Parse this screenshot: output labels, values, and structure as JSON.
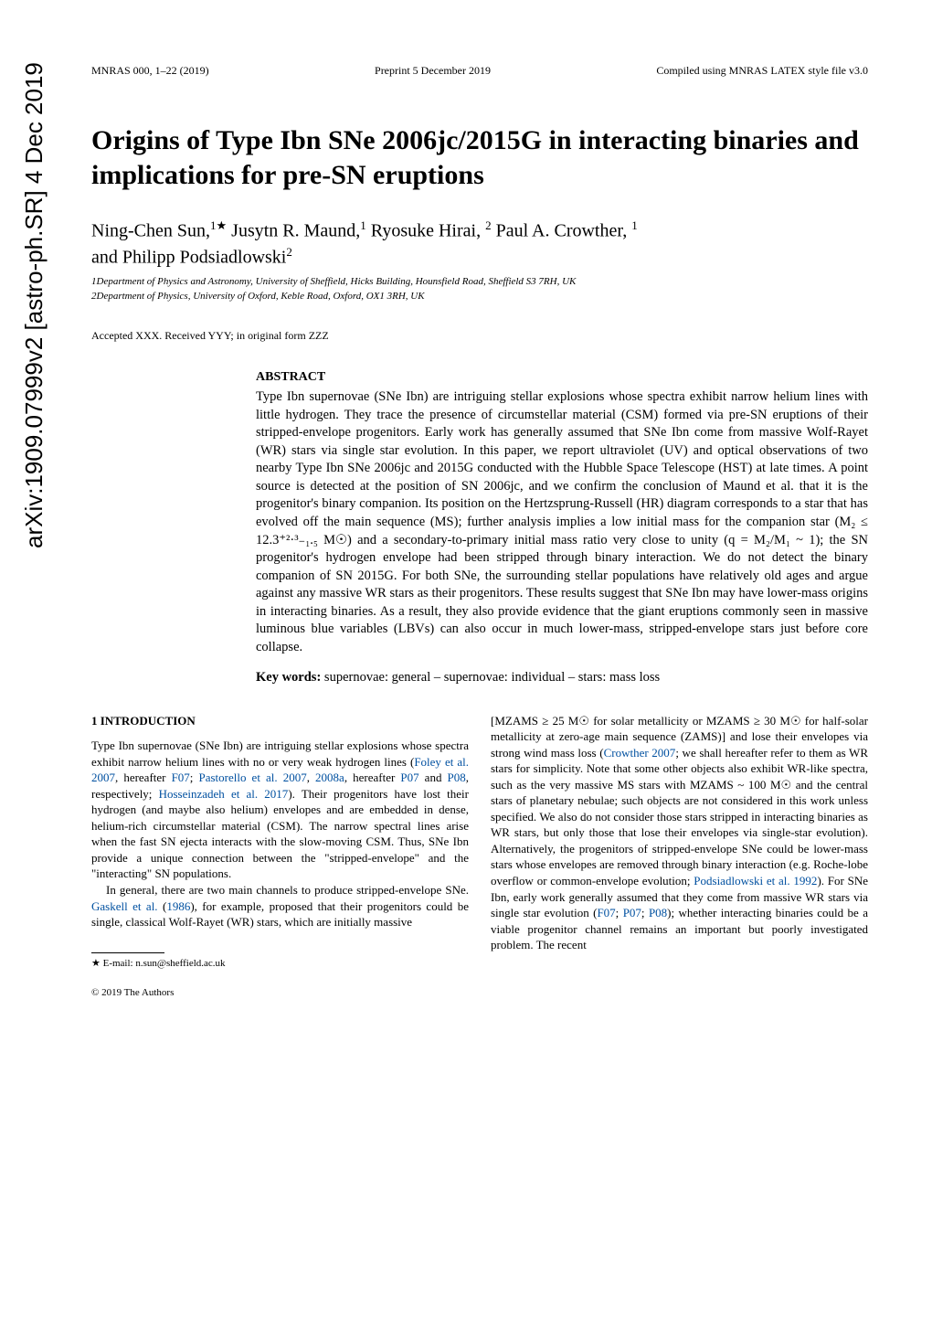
{
  "arxiv": "arXiv:1909.07999v2  [astro-ph.SR]  4 Dec 2019",
  "header": {
    "left": "MNRAS 000, 1–22 (2019)",
    "center": "Preprint 5 December 2019",
    "right": "Compiled using MNRAS LATEX style file v3.0"
  },
  "title": "Origins of Type Ibn SNe 2006jc/2015G in interacting binaries and implications for pre-SN eruptions",
  "authors_line1": "Ning-Chen Sun,",
  "authors_sup1": "1★",
  "authors_line1b": " Jusytn R. Maund,",
  "authors_sup2": "1",
  "authors_line1c": " Ryosuke Hirai, ",
  "authors_sup3": "2",
  "authors_line1d": " Paul A. Crowther, ",
  "authors_sup4": "1",
  "authors_line2": "and Philipp Podsiadlowski",
  "authors_sup5": "2",
  "aff1": "1Department of Physics and Astronomy, University of Sheffield, Hicks Building, Hounsfield Road, Sheffield S3 7RH, UK",
  "aff2": "2Department of Physics, University of Oxford, Keble Road, Oxford, OX1 3RH, UK",
  "accepted": "Accepted XXX. Received YYY; in original form ZZZ",
  "abstract_heading": "ABSTRACT",
  "abstract_text": "Type Ibn supernovae (SNe Ibn) are intriguing stellar explosions whose spectra exhibit narrow helium lines with little hydrogen. They trace the presence of circumstellar material (CSM) formed via pre-SN eruptions of their stripped-envelope progenitors. Early work has generally assumed that SNe Ibn come from massive Wolf-Rayet (WR) stars via single star evolution. In this paper, we report ultraviolet (UV) and optical observations of two nearby Type Ibn SNe 2006jc and 2015G conducted with the Hubble Space Telescope (HST) at late times. A point source is detected at the position of SN 2006jc, and we confirm the conclusion of Maund et al. that it is the progenitor's binary companion. Its position on the Hertzsprung-Russell (HR) diagram corresponds to a star that has evolved off the main sequence (MS); further analysis implies a low initial mass for the companion star (M₂ ≤ 12.3⁺²·³₋₁.₅ M☉) and a secondary-to-primary initial mass ratio very close to unity (q = M₂/M₁ ~ 1); the SN progenitor's hydrogen envelope had been stripped through binary interaction. We do not detect the binary companion of SN 2015G. For both SNe, the surrounding stellar populations have relatively old ages and argue against any massive WR stars as their progenitors. These results suggest that SNe Ibn may have lower-mass origins in interacting binaries. As a result, they also provide evidence that the giant eruptions commonly seen in massive luminous blue variables (LBVs) can also occur in much lower-mass, stripped-envelope stars just before core collapse.",
  "keywords_label": "Key words:",
  "keywords_text": " supernovae: general – supernovae: individual – stars: mass loss",
  "section1_heading": "1   INTRODUCTION",
  "col1_p1a": "Type Ibn supernovae (SNe Ibn) are intriguing stellar explosions whose spectra exhibit narrow helium lines with no or very weak hydrogen lines (",
  "col1_ref1": "Foley et al. 2007",
  "col1_p1b": ", hereafter ",
  "col1_ref2": "F07",
  "col1_p1c": "; ",
  "col1_ref3": "Pastorello et al. 2007",
  "col1_p1d": ", ",
  "col1_ref4": "2008a",
  "col1_p1e": ", hereafter ",
  "col1_ref5": "P07",
  "col1_p1f": " and ",
  "col1_ref6": "P08",
  "col1_p1g": ", respectively; ",
  "col1_ref7": "Hosseinzadeh et al. 2017",
  "col1_p1h": "). Their progenitors have lost their hydrogen (and maybe also helium) envelopes and are embedded in dense, helium-rich circumstellar material (CSM). The narrow spectral lines arise when the fast SN ejecta interacts with the slow-moving CSM. Thus, SNe Ibn provide a unique connection between the \"stripped-envelope\" and the \"interacting\" SN populations.",
  "col1_p2a": "In general, there are two main channels to produce stripped-envelope SNe. ",
  "col1_ref8": "Gaskell et al.",
  "col1_p2b": " (",
  "col1_ref9": "1986",
  "col1_p2c": "), for example, proposed that their progenitors could be single, classical Wolf-Rayet (WR) stars, which are initially massive",
  "footnote": "★ E-mail: n.sun@sheffield.ac.uk",
  "copyright": "© 2019 The Authors",
  "col2_p1a": "[MZAMS ≥ 25 M☉ for solar metallicity or MZAMS ≥ 30 M☉ for half-solar metallicity at zero-age main sequence (ZAMS)] and lose their envelopes via strong wind mass loss (",
  "col2_ref1": "Crowther 2007",
  "col2_p1b": "; we shall hereafter refer to them as WR stars for simplicity. Note that some other objects also exhibit WR-like spectra, such as the very massive MS stars with MZAMS ~ 100 M☉ and the central stars of planetary nebulae; such objects are not considered in this work unless specified. We also do not consider those stars stripped in interacting binaries as WR stars, but only those that lose their envelopes via single-star evolution). Alternatively, the progenitors of stripped-envelope SNe could be lower-mass stars whose envelopes are removed through binary interaction (e.g. Roche-lobe overflow or common-envelope evolution; ",
  "col2_ref2": "Podsiadlowski et al. 1992",
  "col2_p1c": "). For SNe Ibn, early work generally assumed that they come from massive WR stars via single star evolution (",
  "col2_ref3": "F07",
  "col2_p1d": "; ",
  "col2_ref4": "P07",
  "col2_p1e": "; ",
  "col2_ref5": "P08",
  "col2_p1f": "); whether interacting binaries could be a viable progenitor channel remains an important but poorly investigated problem. The recent"
}
